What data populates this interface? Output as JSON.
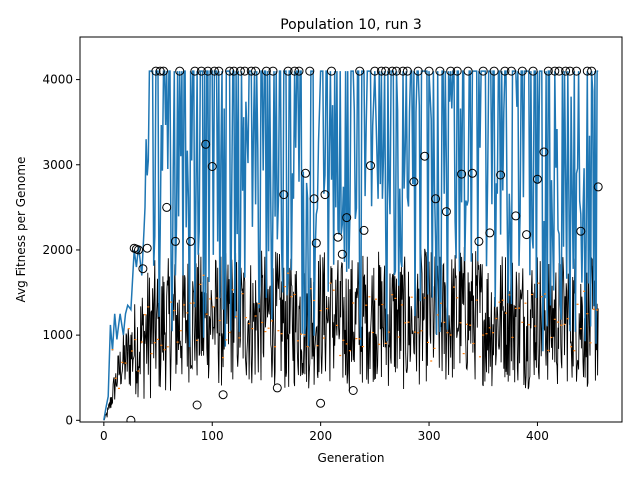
{
  "chart_data": {
    "type": "line",
    "title": "Population 10, run 3",
    "xlabel": "Generation",
    "ylabel": "Avg Fitness per Genome",
    "xlim": [
      -22,
      478
    ],
    "ylim": [
      -20,
      4500
    ],
    "xticks": [
      0,
      100,
      200,
      300,
      400
    ],
    "yticks": [
      0,
      1000,
      2000,
      3000,
      4000
    ],
    "grid": false,
    "legend": "none",
    "generations": [
      0,
      456
    ],
    "series": [
      {
        "role": "max-fitness",
        "style": "line",
        "color": "#1f77b4",
        "x": [
          0,
          2,
          4,
          6,
          8,
          10,
          12,
          15,
          18,
          20,
          22,
          25,
          28,
          30,
          32,
          35,
          38,
          40,
          42,
          44,
          46,
          48,
          50,
          52,
          55,
          58,
          60,
          62,
          64,
          66,
          68,
          70,
          72,
          75,
          78,
          80,
          82,
          84,
          86,
          88,
          90,
          92,
          94,
          96,
          98,
          100,
          105,
          110,
          115,
          120,
          125,
          130,
          135,
          140,
          145,
          150,
          155,
          160,
          165,
          170,
          175,
          180,
          185,
          190,
          195,
          200,
          205,
          210,
          215,
          220,
          225,
          230,
          235,
          240,
          245,
          250,
          255,
          260,
          265,
          270,
          275,
          280,
          285,
          290,
          295,
          300,
          305,
          310,
          315,
          320,
          325,
          330,
          335,
          340,
          345,
          350,
          355,
          360,
          365,
          370,
          375,
          380,
          385,
          390,
          395,
          400,
          405,
          410,
          415,
          420,
          425,
          430,
          435,
          440,
          445,
          450,
          456
        ],
        "y": [
          0,
          150,
          280,
          1120,
          820,
          1250,
          950,
          1250,
          1000,
          1250,
          1350,
          1300,
          2000,
          1800,
          2050,
          1700,
          2500,
          4100,
          2000,
          4100,
          2500,
          4050,
          1500,
          4100,
          2200,
          4100,
          1800,
          4100,
          2900,
          1700,
          4050,
          2100,
          4100,
          1300,
          4100,
          2000,
          4100,
          1600,
          4100,
          2200,
          4100,
          1500,
          4100,
          3200,
          1300,
          4100,
          1600,
          4100,
          1900,
          4100,
          1400,
          4100,
          2300,
          4100,
          1800,
          4100,
          2200,
          4100,
          1500,
          4100,
          2600,
          4100,
          1900,
          4100,
          2000,
          4100,
          1700,
          4100,
          2100,
          2300,
          1200,
          4100,
          1800,
          4100,
          2500,
          4100,
          1600,
          4100,
          2000,
          4100,
          1800,
          4100,
          2900,
          4100,
          2100,
          4100,
          2700,
          4100,
          2300,
          4100,
          1900,
          4100,
          2200,
          4100,
          2600,
          4100,
          2400,
          4100,
          1700,
          4100,
          2300,
          4100,
          2000,
          4100,
          2800,
          4100,
          1900,
          4100,
          2400,
          4100,
          2100,
          4100,
          2600,
          4100,
          2200,
          4100,
          2700
        ]
      },
      {
        "role": "avg-fitness",
        "style": "line",
        "color": "#000000",
        "x": [
          0,
          4,
          8,
          12,
          16,
          20,
          24,
          28,
          32,
          36,
          40,
          44,
          48,
          52,
          56,
          60,
          64,
          68,
          72,
          76,
          80,
          84,
          88,
          92,
          96,
          100,
          110,
          120,
          130,
          140,
          150,
          160,
          170,
          180,
          190,
          200,
          210,
          220,
          230,
          240,
          250,
          260,
          270,
          280,
          290,
          300,
          310,
          320,
          330,
          340,
          350,
          360,
          370,
          380,
          390,
          400,
          410,
          420,
          430,
          440,
          450,
          456
        ],
        "y": [
          0,
          100,
          300,
          500,
          650,
          700,
          800,
          850,
          900,
          950,
          1000,
          1050,
          1100,
          1050,
          1150,
          1100,
          1200,
          1100,
          1150,
          1200,
          1250,
          1150,
          1200,
          1100,
          1250,
          1200,
          1150,
          1250,
          1200,
          1150,
          1250,
          1200,
          1100,
          1200,
          1150,
          1250,
          1200,
          1100,
          1150,
          1200,
          1250,
          1150,
          1200,
          1100,
          1200,
          1250,
          1150,
          1200,
          1300,
          1250,
          1200,
          1150,
          1250,
          1200,
          1150,
          1250,
          1200,
          1150,
          1250,
          1200,
          1150,
          1200
        ]
      },
      {
        "role": "median-fitness",
        "style": "points",
        "color": "#ff7f0e",
        "x": [
          10,
          20,
          30,
          40,
          50,
          60,
          70,
          80,
          90,
          100,
          110,
          120,
          130,
          140,
          150,
          160,
          170,
          180,
          190,
          200,
          210,
          220,
          230,
          240,
          250,
          260,
          270,
          280,
          290,
          300,
          310,
          320,
          330,
          340,
          350,
          360,
          370,
          380,
          390,
          400,
          410,
          420,
          430,
          440,
          450
        ],
        "y": [
          400,
          750,
          900,
          1000,
          1200,
          1000,
          1300,
          1100,
          1400,
          1200,
          1000,
          1300,
          1100,
          1250,
          900,
          1200,
          1400,
          1000,
          1250,
          1150,
          1300,
          950,
          1200,
          1100,
          1350,
          1000,
          1250,
          1150,
          1300,
          1000,
          1200,
          1350,
          1100,
          1250,
          1000,
          1300,
          1150,
          1200,
          1050,
          1300,
          1100,
          1250,
          1000,
          1200,
          1150
        ]
      },
      {
        "role": "outliers",
        "style": "open-circles",
        "color": "#000000",
        "x": [
          25,
          28,
          30,
          32,
          36,
          40,
          48,
          52,
          55,
          58,
          66,
          70,
          80,
          84,
          86,
          90,
          94,
          96,
          100,
          102,
          106,
          110,
          116,
          120,
          126,
          130,
          136,
          140,
          150,
          156,
          160,
          166,
          170,
          176,
          180,
          186,
          190,
          194,
          196,
          200,
          204,
          210,
          216,
          220,
          224,
          230,
          236,
          240,
          246,
          250,
          256,
          260,
          266,
          270,
          276,
          280,
          286,
          290,
          296,
          300,
          306,
          310,
          316,
          320,
          326,
          330,
          336,
          340,
          346,
          350,
          356,
          360,
          366,
          370,
          376,
          380,
          386,
          390,
          396,
          400,
          406,
          410,
          416,
          420,
          426,
          430,
          436,
          440,
          446,
          450,
          456
        ],
        "y": [
          0,
          2020,
          2010,
          2000,
          1780,
          2020,
          4100,
          4100,
          4100,
          2500,
          2100,
          4100,
          2100,
          4100,
          180,
          4100,
          3240,
          4100,
          2980,
          4100,
          4100,
          300,
          4100,
          4100,
          4100,
          4100,
          4100,
          4100,
          4100,
          4100,
          380,
          2650,
          4100,
          4100,
          4100,
          2900,
          4100,
          2600,
          2080,
          200,
          2650,
          4100,
          2150,
          1950,
          2380,
          350,
          4100,
          2230,
          2990,
          4100,
          4100,
          4100,
          4100,
          4100,
          4100,
          4100,
          2800,
          4100,
          3100,
          4100,
          2600,
          4100,
          2450,
          4100,
          4100,
          2890,
          4100,
          2900,
          2100,
          4100,
          2200,
          4100,
          2880,
          4100,
          4100,
          2400,
          4100,
          2180,
          4100,
          2830,
          3150,
          4100,
          4100,
          4100,
          4100,
          4100,
          4100,
          2220,
          4100,
          4100,
          2740
        ]
      }
    ]
  }
}
